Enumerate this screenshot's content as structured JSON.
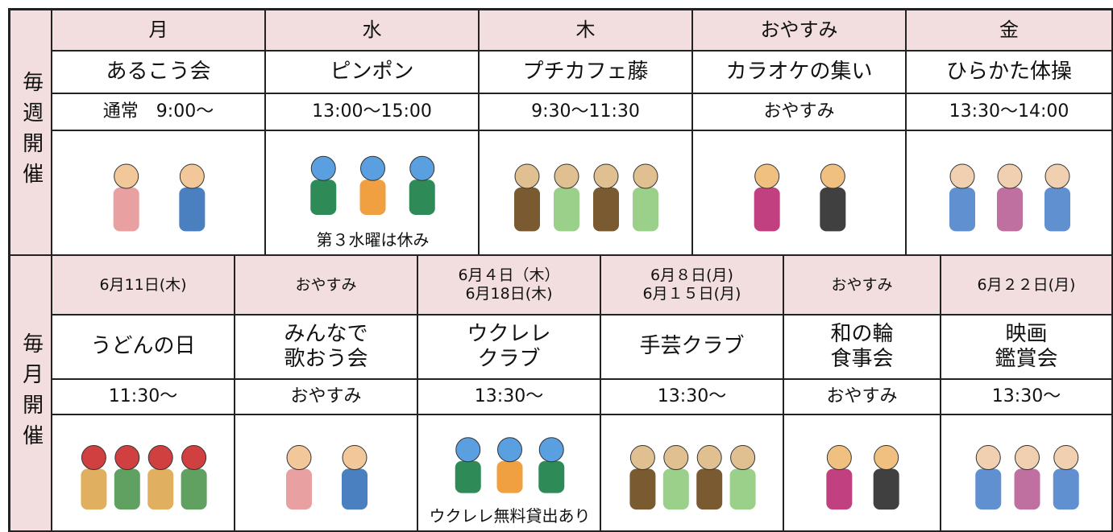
{
  "weekly": {
    "label": "毎週開催",
    "columns": [
      {
        "day": "月",
        "name": "あるこう会",
        "time": "通常　9:00～"
      },
      {
        "day": "水",
        "name": "ピンポン",
        "time": "13:00～15:00",
        "note": "第３水曜は休み"
      },
      {
        "day": "木",
        "name": "プチカフェ藤",
        "time": "9:30～11:30"
      },
      {
        "day": "おやすみ",
        "name": "カラオケの集い",
        "time": "おやすみ"
      },
      {
        "day": "金",
        "name": "ひらかた体操",
        "time": "13:30～14:00"
      }
    ]
  },
  "monthly": {
    "label": "毎月開催",
    "columns": [
      {
        "date": [
          "6月11日(木)"
        ],
        "name": [
          "うどんの日"
        ],
        "time": "11:30～"
      },
      {
        "date": [
          "おやすみ"
        ],
        "name": [
          "みんなで",
          "歌おう会"
        ],
        "time": "おやすみ"
      },
      {
        "date": [
          "6月４日（木）",
          "6月18日(木)"
        ],
        "name": [
          "ウクレレ",
          "クラブ"
        ],
        "time": "13:30～",
        "note": "ウクレレ無料貸出あり"
      },
      {
        "date": [
          "6月８日(月)",
          "6月１５日(月)"
        ],
        "name": [
          "手芸クラブ"
        ],
        "time": "13:30～"
      },
      {
        "date": [
          "おやすみ"
        ],
        "name": [
          "和の輪",
          "食事会"
        ],
        "time": "おやすみ"
      },
      {
        "date": [
          "6月２２日(月)"
        ],
        "name": [
          "映画",
          "鑑賞会"
        ],
        "time": "13:30～"
      }
    ]
  }
}
